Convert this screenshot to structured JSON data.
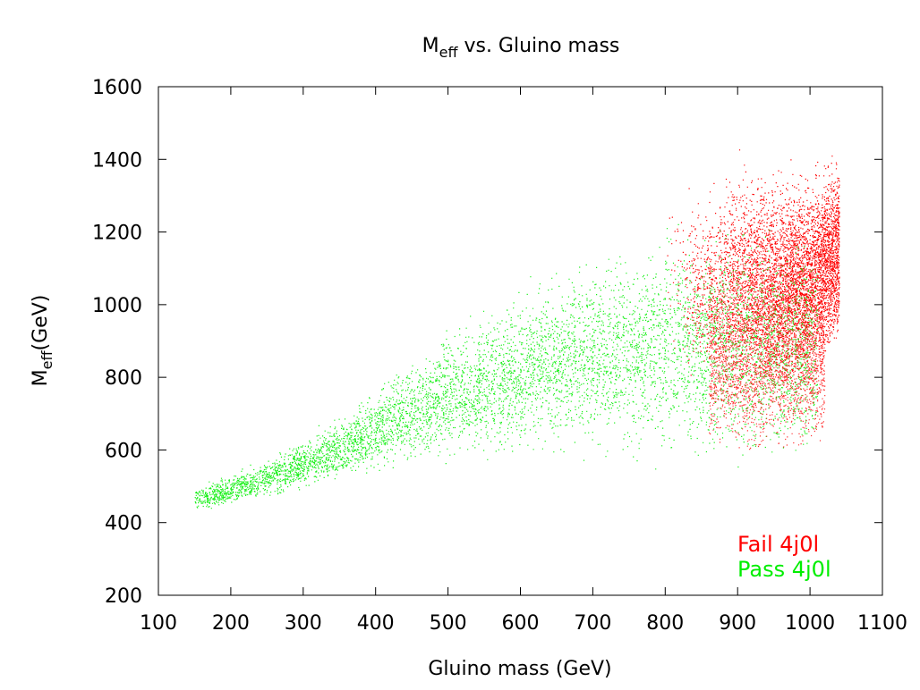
{
  "chart_data": {
    "type": "scatter",
    "title": {
      "main": "M",
      "sub": "eff",
      "rest": " vs. Gluino mass"
    },
    "xlabel": "Gluino mass (GeV)",
    "ylabel": {
      "main": "M",
      "sub": "eff",
      "rest": "(GeV)"
    },
    "xlim": [
      100,
      1100
    ],
    "ylim": [
      200,
      1600
    ],
    "xticks": [
      100,
      200,
      300,
      400,
      500,
      600,
      700,
      800,
      900,
      1000,
      1100
    ],
    "yticks": [
      200,
      400,
      600,
      800,
      1000,
      1200,
      1400,
      1600
    ],
    "grid": false,
    "legend_position": "bottom-right",
    "series": [
      {
        "name": "Fail 4j0l",
        "color": "#ff0000",
        "points_note": "dense cloud approx. x 800-1040 GeV, y 600-1430 GeV, densest x 900-1010, y 900-1250",
        "envelope": [
          {
            "x": 800,
            "y_low": 700,
            "y_high": 1390
          },
          {
            "x": 850,
            "y_low": 650,
            "y_high": 1300
          },
          {
            "x": 900,
            "y_low": 620,
            "y_high": 1420
          },
          {
            "x": 950,
            "y_low": 620,
            "y_high": 1380
          },
          {
            "x": 1000,
            "y_low": 620,
            "y_high": 1400
          },
          {
            "x": 1040,
            "y_low": 750,
            "y_high": 1430
          }
        ]
      },
      {
        "name": "Pass 4j0l",
        "color": "#00ee00",
        "points_note": "dense cloud rising from (150, ~470) to (1010, ~600-1250)",
        "envelope": [
          {
            "x": 150,
            "y_low": 430,
            "y_high": 500
          },
          {
            "x": 200,
            "y_low": 440,
            "y_high": 540
          },
          {
            "x": 250,
            "y_low": 460,
            "y_high": 580
          },
          {
            "x": 300,
            "y_low": 480,
            "y_high": 640
          },
          {
            "x": 350,
            "y_low": 500,
            "y_high": 700
          },
          {
            "x": 400,
            "y_low": 520,
            "y_high": 790
          },
          {
            "x": 450,
            "y_low": 540,
            "y_high": 860
          },
          {
            "x": 500,
            "y_low": 560,
            "y_high": 950
          },
          {
            "x": 550,
            "y_low": 560,
            "y_high": 1000
          },
          {
            "x": 600,
            "y_low": 560,
            "y_high": 1060
          },
          {
            "x": 650,
            "y_low": 570,
            "y_high": 1110
          },
          {
            "x": 700,
            "y_low": 560,
            "y_high": 1160
          },
          {
            "x": 750,
            "y_low": 550,
            "y_high": 1200
          },
          {
            "x": 800,
            "y_low": 540,
            "y_high": 1240
          },
          {
            "x": 850,
            "y_low": 530,
            "y_high": 1250
          },
          {
            "x": 900,
            "y_low": 520,
            "y_high": 1250
          },
          {
            "x": 950,
            "y_low": 520,
            "y_high": 1230
          },
          {
            "x": 1010,
            "y_low": 530,
            "y_high": 1200
          }
        ]
      }
    ]
  }
}
